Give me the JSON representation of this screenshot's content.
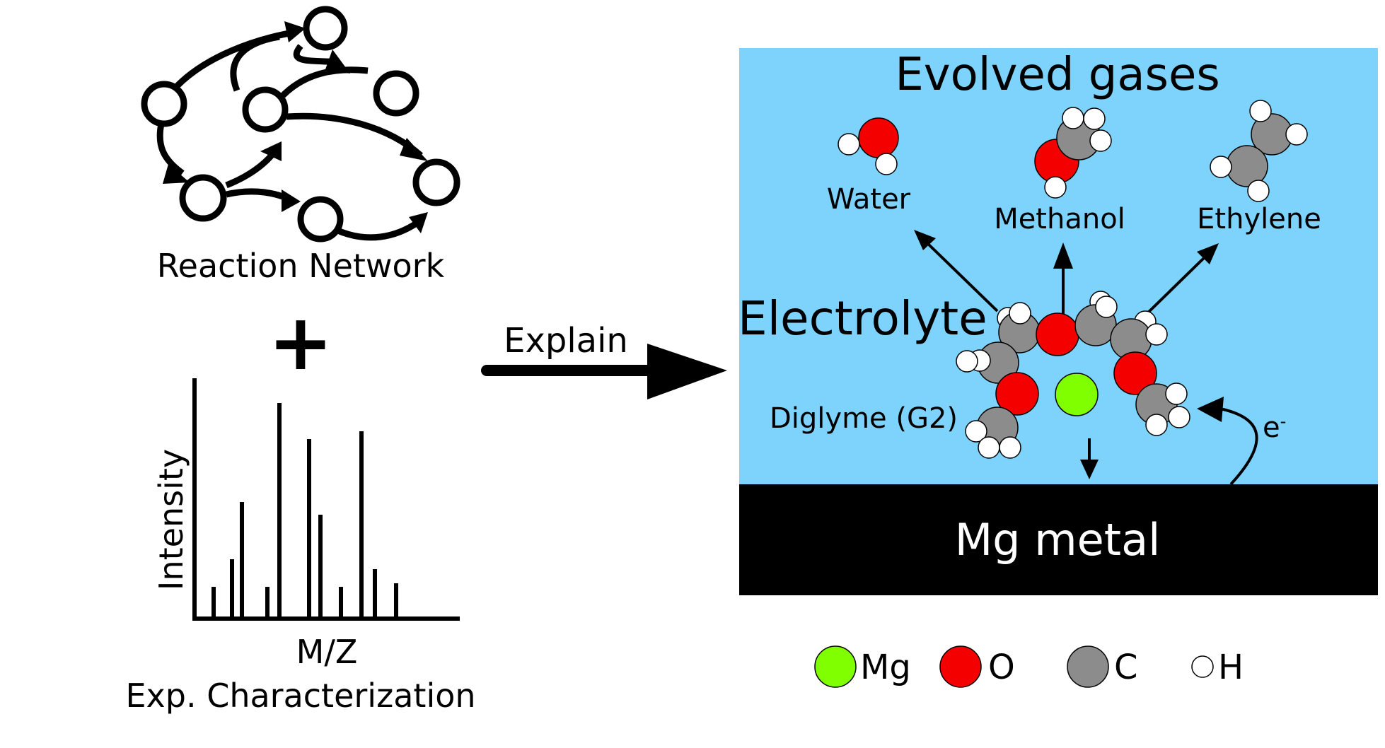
{
  "network": {
    "label": "Reaction Network"
  },
  "plus_sign": "+",
  "spectrum": {
    "ylabel": "Intensity",
    "xlabel": "M/Z",
    "caption": "Exp. Characterization"
  },
  "explain_label": "Explain",
  "panel": {
    "evolved_title": "Evolved gases",
    "gases": [
      {
        "name": "Water"
      },
      {
        "name": "Methanol"
      },
      {
        "name": "Ethylene"
      }
    ],
    "electrolyte_label": "Electrolyte",
    "solvent_label": "Diglyme (G2)",
    "electron_label": "e",
    "electron_charge": "-",
    "metal_label": "Mg metal",
    "colors": {
      "electrolyte": "#7dd3fb",
      "metal": "#000000",
      "Mg": "#7fff00",
      "O": "#f40000",
      "C": "#8c8c8c",
      "H": "#ffffff"
    }
  },
  "legend": [
    {
      "symbol": "Mg",
      "color": "#7fff00"
    },
    {
      "symbol": "O",
      "color": "#f40000"
    },
    {
      "symbol": "C",
      "color": "#8c8c8c"
    },
    {
      "symbol": "H",
      "color": "#ffffff"
    }
  ]
}
